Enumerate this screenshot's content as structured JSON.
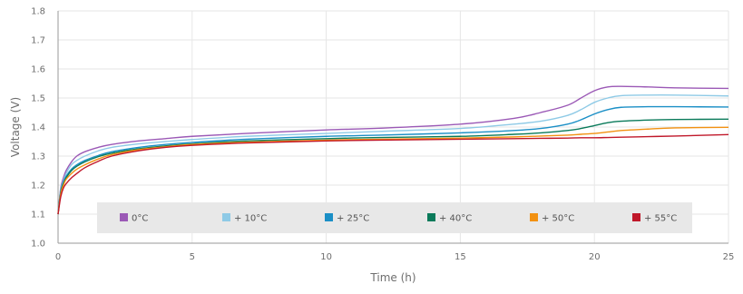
{
  "chart_data": {
    "type": "line",
    "title": "",
    "xlabel": "Time (h)",
    "ylabel": "Voltage (V)",
    "xlim": [
      0,
      25
    ],
    "ylim": [
      1.0,
      1.8
    ],
    "x_ticks": [
      0,
      5,
      10,
      15,
      20,
      25
    ],
    "y_ticks": [
      1.0,
      1.1,
      1.2,
      1.3,
      1.4,
      1.5,
      1.6,
      1.7,
      1.8
    ],
    "x_tick_labels": [
      "0",
      "5",
      "10",
      "15",
      "20",
      "25"
    ],
    "y_tick_labels": [
      "1.0",
      "1.1",
      "1.2",
      "1.3",
      "1.4",
      "1.5",
      "1.6",
      "1.7",
      "1.8"
    ],
    "grid": true,
    "legend_position": "bottom",
    "x": [
      0,
      0.1,
      0.2,
      0.3,
      0.5,
      0.7,
      1,
      1.5,
      2,
      3,
      4,
      5,
      7,
      10,
      12,
      15,
      17,
      18,
      19,
      19.5,
      20,
      20.5,
      21,
      22,
      23,
      25
    ],
    "series": [
      {
        "name": "0°C",
        "color": "#9b59b6",
        "values": [
          1.1,
          1.19,
          1.225,
          1.25,
          1.28,
          1.3,
          1.315,
          1.33,
          1.34,
          1.352,
          1.36,
          1.368,
          1.378,
          1.39,
          1.396,
          1.41,
          1.43,
          1.45,
          1.475,
          1.5,
          1.525,
          1.538,
          1.54,
          1.538,
          1.535,
          1.533
        ]
      },
      {
        "name": "+ 10°C",
        "color": "#8ecae6",
        "values": [
          1.1,
          1.185,
          1.215,
          1.24,
          1.27,
          1.285,
          1.3,
          1.318,
          1.33,
          1.342,
          1.35,
          1.357,
          1.368,
          1.378,
          1.385,
          1.395,
          1.41,
          1.42,
          1.44,
          1.46,
          1.485,
          1.5,
          1.508,
          1.51,
          1.51,
          1.507
        ]
      },
      {
        "name": "+ 25°C",
        "color": "#1b8fc6",
        "values": [
          1.1,
          1.18,
          1.21,
          1.23,
          1.255,
          1.27,
          1.285,
          1.302,
          1.315,
          1.33,
          1.34,
          1.347,
          1.358,
          1.368,
          1.372,
          1.38,
          1.388,
          1.395,
          1.41,
          1.425,
          1.445,
          1.46,
          1.468,
          1.47,
          1.47,
          1.469
        ]
      },
      {
        "name": "+ 40°C",
        "color": "#0a7a5a",
        "values": [
          1.1,
          1.175,
          1.205,
          1.225,
          1.25,
          1.265,
          1.28,
          1.298,
          1.31,
          1.325,
          1.335,
          1.342,
          1.352,
          1.36,
          1.364,
          1.368,
          1.375,
          1.38,
          1.388,
          1.395,
          1.405,
          1.415,
          1.42,
          1.424,
          1.426,
          1.427
        ]
      },
      {
        "name": "+ 50°C",
        "color": "#f29111",
        "values": [
          1.1,
          1.17,
          1.2,
          1.22,
          1.24,
          1.255,
          1.27,
          1.29,
          1.305,
          1.322,
          1.332,
          1.34,
          1.348,
          1.355,
          1.358,
          1.362,
          1.366,
          1.369,
          1.372,
          1.375,
          1.378,
          1.383,
          1.388,
          1.393,
          1.397,
          1.399
        ]
      },
      {
        "name": "+ 55°C",
        "color": "#c0182a",
        "values": [
          1.1,
          1.16,
          1.19,
          1.205,
          1.225,
          1.24,
          1.26,
          1.282,
          1.3,
          1.318,
          1.33,
          1.337,
          1.345,
          1.352,
          1.355,
          1.358,
          1.36,
          1.361,
          1.362,
          1.363,
          1.363,
          1.364,
          1.365,
          1.367,
          1.369,
          1.374
        ]
      }
    ]
  }
}
